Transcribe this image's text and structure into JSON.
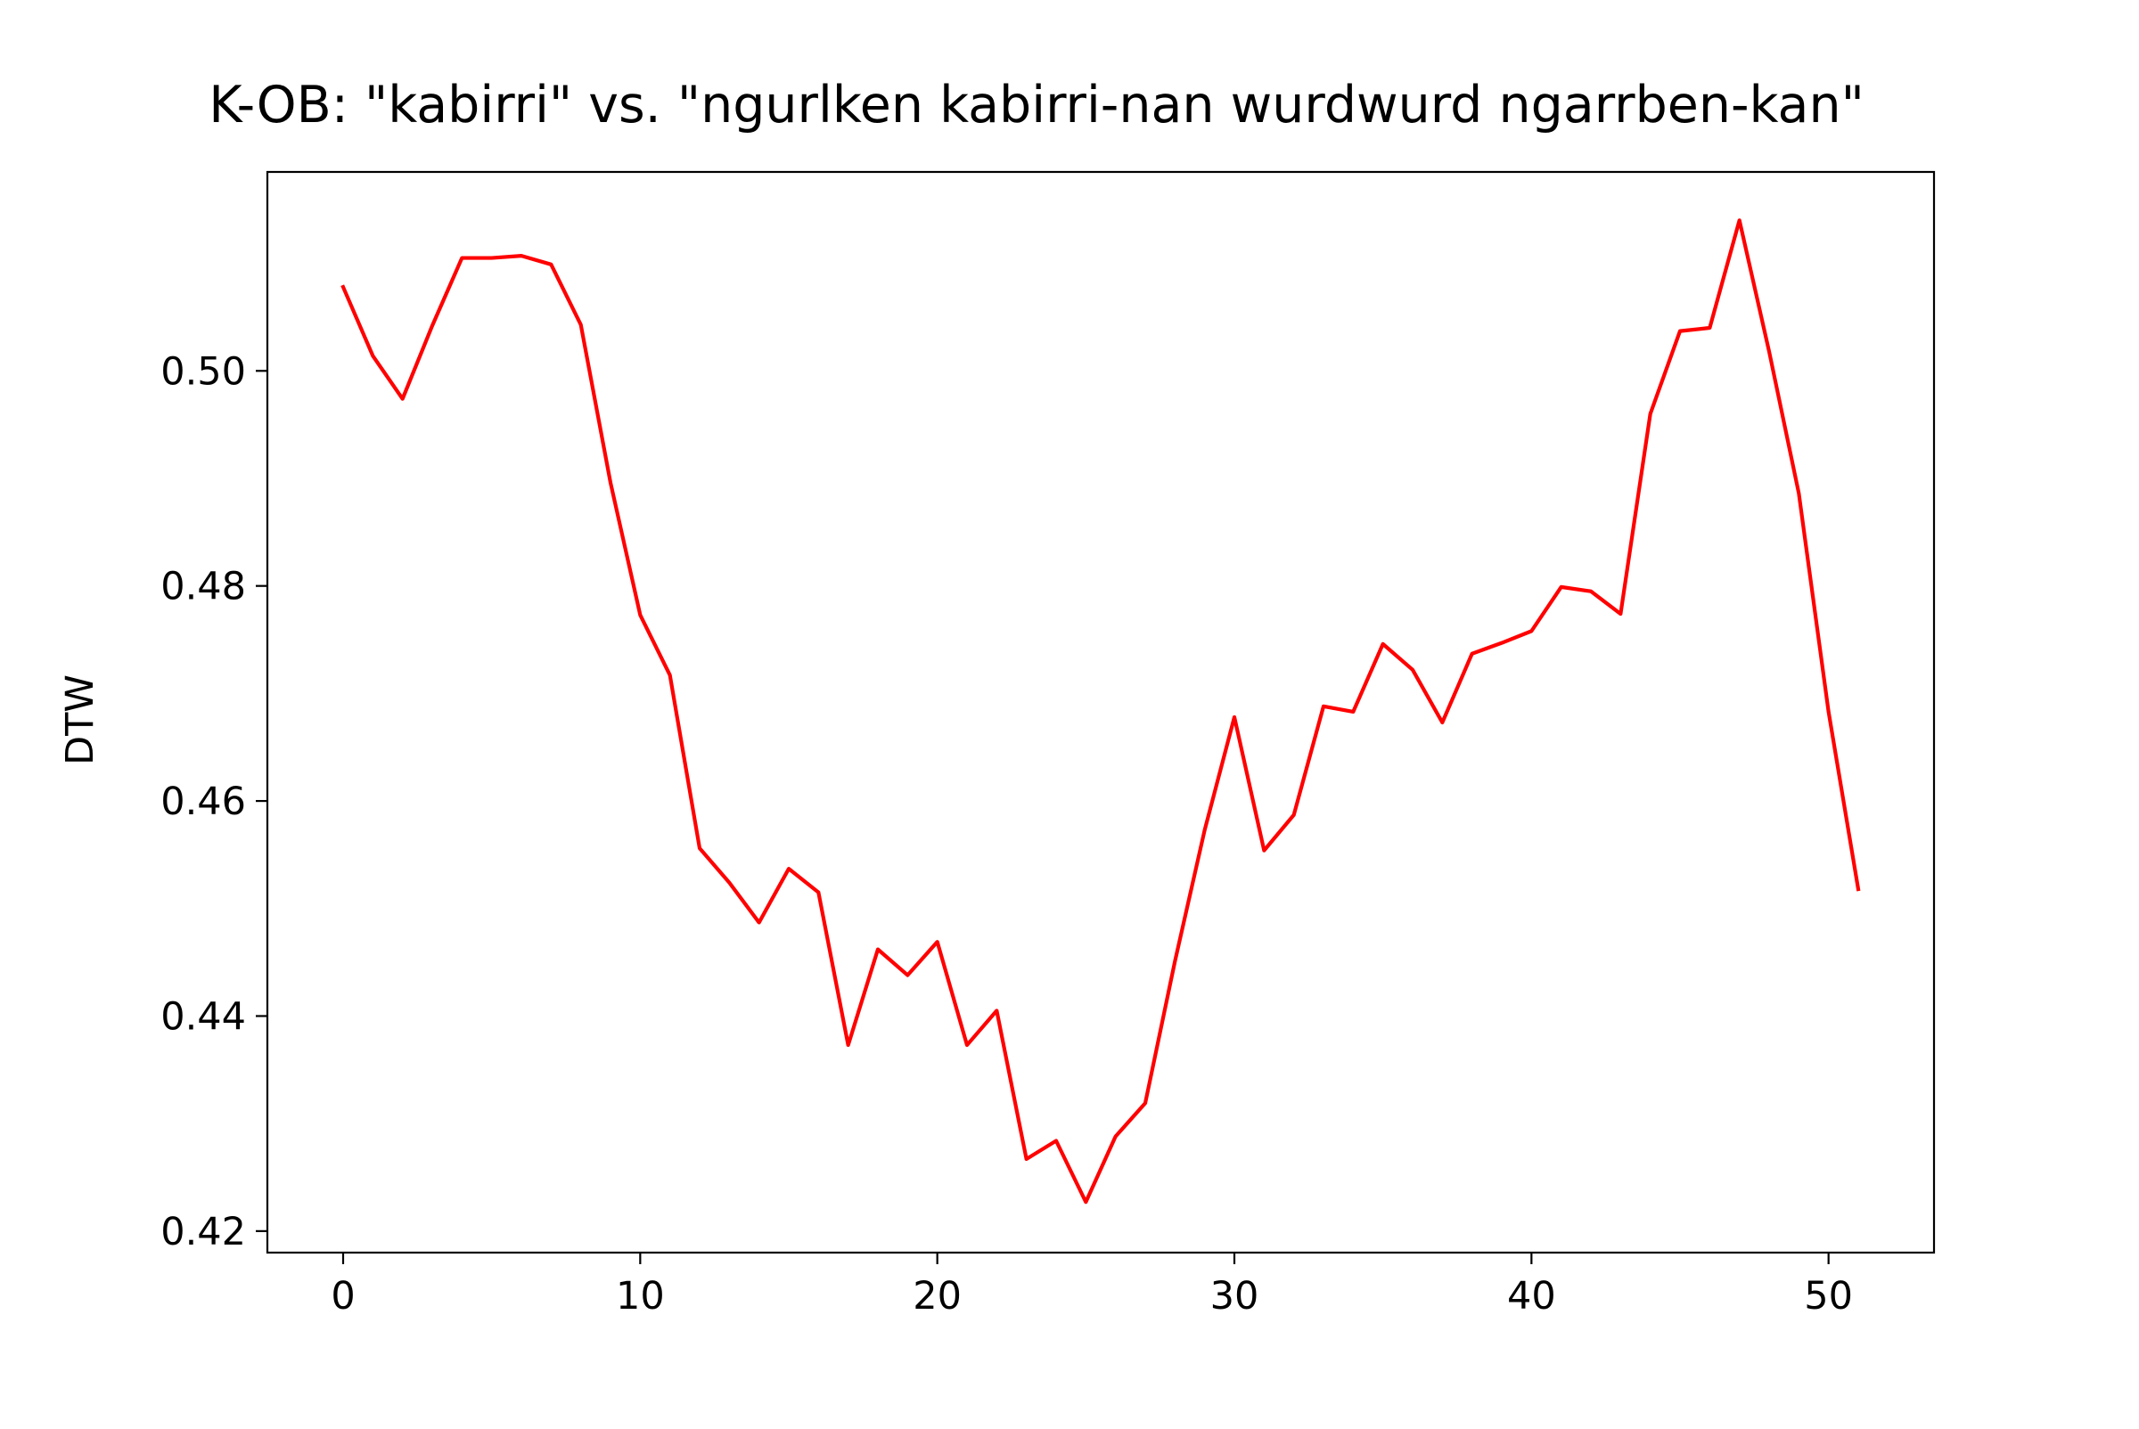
{
  "chart_data": {
    "type": "line",
    "title": "K-OB: \"kabirri\" vs. \"ngurlken kabirri-nan wurdwurd ngarrben-kan\"",
    "xlabel": "",
    "ylabel": "DTW",
    "xlim": [
      -2.55,
      53.55
    ],
    "ylim": [
      0.418,
      0.5185
    ],
    "xticks": [
      0,
      10,
      20,
      30,
      40,
      50
    ],
    "xtick_labels": [
      "0",
      "10",
      "20",
      "30",
      "40",
      "50"
    ],
    "yticks": [
      0.42,
      0.44,
      0.46,
      0.48,
      0.5
    ],
    "ytick_labels": [
      "0.42",
      "0.44",
      "0.46",
      "0.48",
      "0.50"
    ],
    "grid": false,
    "legend": "none",
    "series": [
      {
        "color": "#ff0000",
        "x": [
          0,
          1,
          2,
          3,
          4,
          5,
          6,
          7,
          8,
          9,
          10,
          11,
          12,
          13,
          14,
          15,
          16,
          17,
          18,
          19,
          20,
          21,
          22,
          23,
          24,
          25,
          26,
          27,
          28,
          29,
          30,
          31,
          32,
          33,
          34,
          35,
          36,
          37,
          38,
          39,
          40,
          41,
          42,
          43,
          44,
          45,
          46,
          47,
          48,
          49,
          50,
          51
        ],
        "y": [
          0.5078,
          0.5014,
          0.4974,
          0.5042,
          0.5105,
          0.5105,
          0.5107,
          0.5099,
          0.5043,
          0.4896,
          0.4773,
          0.4717,
          0.4556,
          0.4524,
          0.4487,
          0.4537,
          0.4515,
          0.4373,
          0.4462,
          0.4438,
          0.4469,
          0.4373,
          0.4405,
          0.4267,
          0.4284,
          0.4227,
          0.4288,
          0.4319,
          0.4451,
          0.4573,
          0.4678,
          0.4554,
          0.4587,
          0.4688,
          0.4683,
          0.4746,
          0.4722,
          0.4673,
          0.4737,
          0.4747,
          0.4758,
          0.4799,
          0.4795,
          0.4774,
          0.496,
          0.5037,
          0.504,
          0.514,
          0.5018,
          0.4886,
          0.4683,
          0.4518
        ]
      }
    ]
  }
}
